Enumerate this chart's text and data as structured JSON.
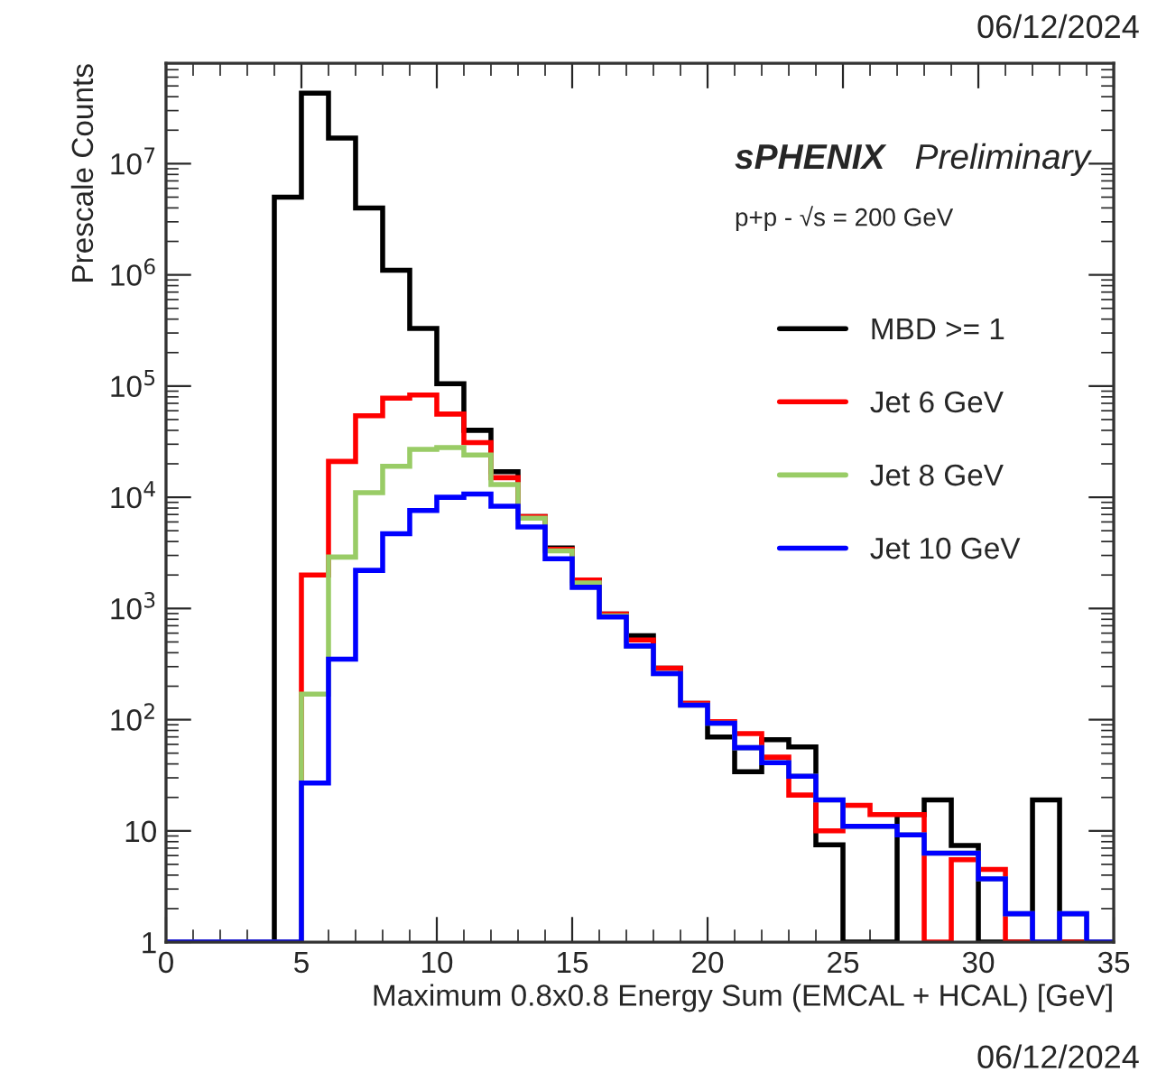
{
  "chart_data": {
    "type": "histogram",
    "xlabel": "Maximum 0.8x0.8 Energy Sum (EMCAL + HCAL) [GeV]",
    "ylabel": "Prescale Counts",
    "annotations": [
      "sPHENIX",
      "Preliminary",
      "p+p - √s = 200 GeV",
      "06/12/2024",
      "06/12/2024"
    ],
    "bins": [
      0,
      1,
      2,
      3,
      4,
      5,
      6,
      7,
      8,
      9,
      10,
      11,
      12,
      13,
      14,
      15,
      16,
      17,
      18,
      19,
      20,
      21,
      22,
      23,
      24,
      25,
      26,
      27,
      28,
      29,
      30,
      31,
      32,
      33,
      34,
      35
    ],
    "series": [
      {
        "name": "MBD >= 1",
        "color": "#000000",
        "values": [
          1,
          1,
          1,
          1,
          5000000,
          43000000,
          17000000,
          4000000,
          1100000,
          330000,
          105000,
          40000,
          17000,
          6700,
          3500,
          1800,
          890,
          570,
          290,
          140,
          70,
          34,
          66,
          57,
          7.5,
          1,
          1,
          14,
          19,
          7.4,
          1,
          1,
          19,
          1,
          1
        ]
      },
      {
        "name": "Jet 6 GeV",
        "color": "#ff0000",
        "values": [
          1,
          1,
          1,
          1,
          1,
          2000,
          21000,
          54000,
          78000,
          83000,
          56000,
          31000,
          15000,
          6700,
          3400,
          1800,
          890,
          520,
          290,
          140,
          96,
          75,
          46,
          21,
          10,
          17,
          14,
          14,
          1,
          5.5,
          4.5,
          1,
          1,
          1,
          1
        ]
      },
      {
        "name": "Jet 8 GeV",
        "color": "#99cc66",
        "values": [
          1,
          1,
          1,
          1,
          1,
          170,
          2900,
          11000,
          19000,
          27000,
          28000,
          24000,
          13000,
          6500,
          3300,
          1700,
          860,
          460,
          260,
          135,
          93,
          56,
          41,
          31,
          19,
          11,
          11,
          9.2,
          6.3,
          6.3,
          3.7,
          1.8,
          1,
          1.8,
          1
        ]
      },
      {
        "name": "Jet 10 GeV",
        "color": "#0000ff",
        "values": [
          1,
          1,
          1,
          1,
          1,
          27,
          350,
          2200,
          4700,
          7600,
          10000,
          10700,
          8300,
          5400,
          2800,
          1550,
          840,
          460,
          260,
          135,
          93,
          56,
          41,
          31,
          19,
          11,
          11,
          9.2,
          6.3,
          6.3,
          3.7,
          1.8,
          1,
          1.8,
          1
        ]
      }
    ],
    "log": "y",
    "xlim": [
      0,
      35
    ],
    "xticks": [
      0,
      5,
      10,
      15,
      20,
      25,
      30,
      35
    ],
    "ylim": [
      1,
      80000000
    ],
    "yticks": [
      1,
      10,
      {
        "value": 100,
        "label": "10$^{2}$"
      },
      {
        "value": 1000,
        "label": "10$^{3}$"
      },
      {
        "value": 10000,
        "label": "10$^{4}$"
      },
      {
        "value": 100000,
        "label": "10$^{5}$"
      },
      {
        "value": 1000000,
        "label": "10$^{6}$"
      },
      {
        "value": 10000000,
        "label": "10$^{7}$"
      }
    ],
    "legend": "right",
    "grid": false,
    "line_style": "solid"
  }
}
